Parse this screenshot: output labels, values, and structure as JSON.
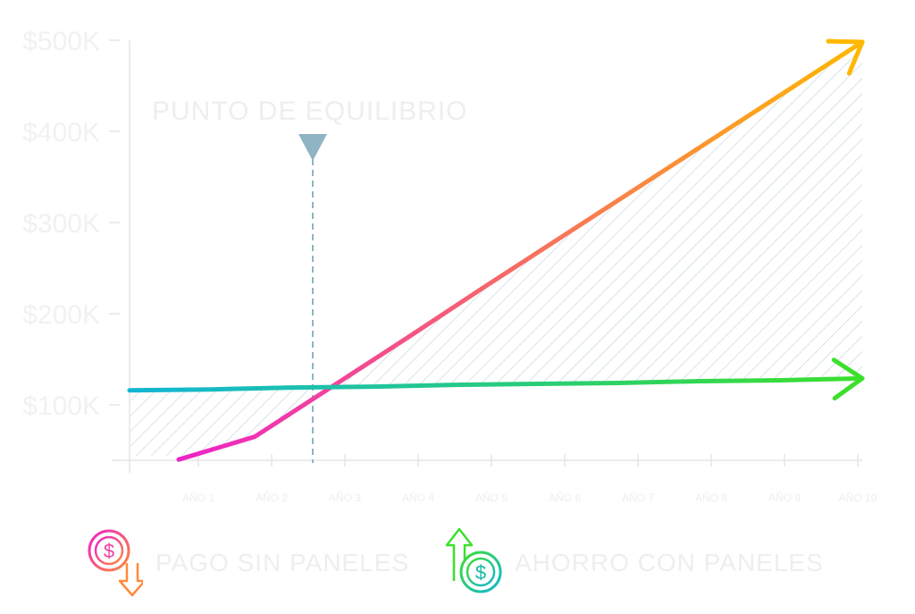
{
  "chart_data": {
    "type": "line",
    "title": "",
    "xlabel": "",
    "ylabel": "",
    "categories": [
      "AÑO 1",
      "AÑO 2",
      "AÑO 3",
      "AÑO 4",
      "AÑO 5",
      "AÑO 6",
      "AÑO 7",
      "AÑO 8",
      "AÑO 9",
      "AÑO 10"
    ],
    "y_ticks": [
      "$100K",
      "$200K",
      "$300K",
      "$400K",
      "$500K"
    ],
    "ylim": [
      40,
      500
    ],
    "series": [
      {
        "name": "PAGO SIN PANELES",
        "values": [
          40,
          65,
          119,
          173,
          228,
          282,
          336,
          390,
          444,
          498
        ],
        "x_start": 1.0,
        "color_start": "#ee22c8",
        "color_end": "#ffb800"
      },
      {
        "name": "AHORRO CON PANELES",
        "values": [
          116,
          117,
          119,
          120,
          122,
          123,
          124,
          126,
          127,
          129
        ],
        "x_start": 0.0,
        "color_start": "#12b5d6",
        "color_end": "#3ce02c"
      }
    ],
    "annotations": [
      {
        "text": "PUNTO DE EQUILIBRIO",
        "x": 2.8
      }
    ],
    "grid": false,
    "hatched_area": "between series",
    "colors": {
      "hatch": "#bcd2dc",
      "marker": "#8fb4c4",
      "axis": "#e6e6e6"
    }
  },
  "legend": {
    "items": [
      {
        "label": "PAGO SIN PANELES",
        "icon": "dollar-down-icon"
      },
      {
        "label": "AHORRO CON PANELES",
        "icon": "dollar-up-icon"
      }
    ]
  }
}
